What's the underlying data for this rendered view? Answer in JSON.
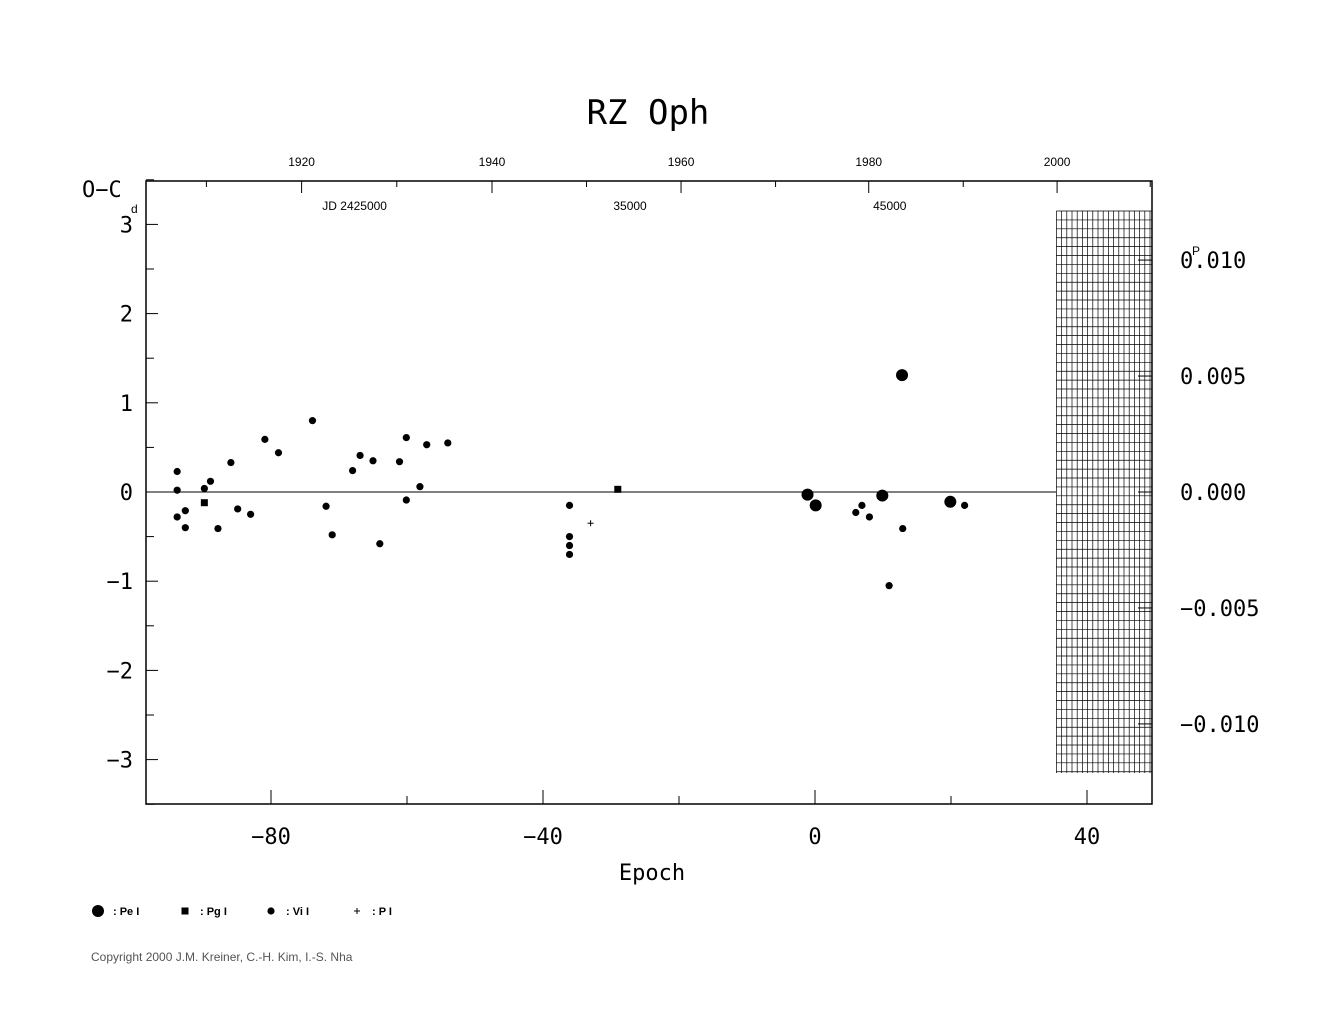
{
  "chart_data": {
    "type": "scatter",
    "title": "RZ Oph",
    "xlabel": "Epoch",
    "ylabel": "O−C",
    "y_unit_label": "d",
    "right_axis_unit_label": "P",
    "xlim": [
      -98,
      50
    ],
    "ylim": [
      -3.5,
      3.5
    ],
    "x_ticks": [
      -80,
      -40,
      0,
      40
    ],
    "x_tick_labels": [
      "−80",
      "−40",
      "0",
      "40"
    ],
    "y_ticks": [
      -3,
      -2,
      -1,
      0,
      1,
      2,
      3
    ],
    "y_tick_labels": [
      "−3",
      "−2",
      "−1",
      "0",
      "1",
      "2",
      "3"
    ],
    "top_axis_years": [
      {
        "label": "1920",
        "epoch": -75.5
      },
      {
        "label": "1940",
        "epoch": -47.5
      },
      {
        "label": "1960",
        "epoch": -19.7
      },
      {
        "label": "1980",
        "epoch": 7.9
      },
      {
        "label": "2000",
        "epoch": 35.6
      }
    ],
    "jd_labels": [
      {
        "label": "JD  2425000",
        "epoch": -67.7
      },
      {
        "label": "35000",
        "epoch": -27.2
      },
      {
        "label": "45000",
        "epoch": 11.0
      }
    ],
    "right_axis_ticks": [
      {
        "label": "0.010",
        "value": 2.6
      },
      {
        "label": "0.005",
        "value": 1.3
      },
      {
        "label": "0.000",
        "value": 0.0
      },
      {
        "label": "−0.005",
        "value": -1.3
      },
      {
        "label": "−0.010",
        "value": -2.6
      }
    ],
    "hatched_region_epoch": [
      35.5,
      49.5
    ],
    "hatched_region_y": [
      -3.15,
      3.15
    ],
    "reference_line_y": 0,
    "series": [
      {
        "name": "Pe I",
        "marker": "large-dot",
        "points": [
          {
            "x": -1.1,
            "y": -0.03
          },
          {
            "x": 0.1,
            "y": -0.15
          },
          {
            "x": 9.9,
            "y": -0.04
          },
          {
            "x": 12.8,
            "y": 1.31
          },
          {
            "x": 19.9,
            "y": -0.11
          }
        ]
      },
      {
        "name": "Pg I",
        "marker": "square",
        "points": [
          {
            "x": -89.8,
            "y": -0.12
          },
          {
            "x": -29.0,
            "y": 0.03
          }
        ]
      },
      {
        "name": "Vi I",
        "marker": "small-dot",
        "points": [
          {
            "x": -93.8,
            "y": 0.23
          },
          {
            "x": -93.8,
            "y": 0.02
          },
          {
            "x": -93.8,
            "y": -0.28
          },
          {
            "x": -92.6,
            "y": -0.21
          },
          {
            "x": -92.6,
            "y": -0.4
          },
          {
            "x": -89.8,
            "y": 0.04
          },
          {
            "x": -88.9,
            "y": 0.12
          },
          {
            "x": -87.8,
            "y": -0.41
          },
          {
            "x": -85.9,
            "y": 0.33
          },
          {
            "x": -84.9,
            "y": -0.19
          },
          {
            "x": -83.0,
            "y": -0.25
          },
          {
            "x": -80.9,
            "y": 0.59
          },
          {
            "x": -78.9,
            "y": 0.44
          },
          {
            "x": -73.9,
            "y": 0.8
          },
          {
            "x": -71.9,
            "y": -0.16
          },
          {
            "x": -71.0,
            "y": -0.48
          },
          {
            "x": -68.0,
            "y": 0.24
          },
          {
            "x": -66.9,
            "y": 0.41
          },
          {
            "x": -65.0,
            "y": 0.35
          },
          {
            "x": -64.0,
            "y": -0.58
          },
          {
            "x": -61.1,
            "y": 0.34
          },
          {
            "x": -60.1,
            "y": 0.61
          },
          {
            "x": -60.1,
            "y": -0.09
          },
          {
            "x": -58.1,
            "y": 0.06
          },
          {
            "x": -57.1,
            "y": 0.53
          },
          {
            "x": -54.0,
            "y": 0.55
          },
          {
            "x": -36.1,
            "y": -0.15
          },
          {
            "x": -36.1,
            "y": -0.5
          },
          {
            "x": -36.1,
            "y": -0.6
          },
          {
            "x": -36.1,
            "y": -0.7
          },
          {
            "x": 6.0,
            "y": -0.23
          },
          {
            "x": 6.9,
            "y": -0.15
          },
          {
            "x": 8.0,
            "y": -0.28
          },
          {
            "x": 12.9,
            "y": -0.41
          },
          {
            "x": 10.9,
            "y": -1.05
          },
          {
            "x": 22.0,
            "y": -0.15
          }
        ]
      },
      {
        "name": "P I",
        "marker": "plus",
        "points": [
          {
            "x": -33.0,
            "y": -0.35
          }
        ]
      }
    ],
    "legend": [
      {
        "marker": "large-dot",
        "label": ": Pe I"
      },
      {
        "marker": "square",
        "label": ": Pg I"
      },
      {
        "marker": "small-dot",
        "label": ": Vi I"
      },
      {
        "marker": "plus",
        "label": ": P I"
      }
    ],
    "legend_placement": "bottom-left",
    "grid": false
  },
  "copyright": "Copyright 2000 J.M. Kreiner, C.-H. Kim, I.-S. Nha"
}
